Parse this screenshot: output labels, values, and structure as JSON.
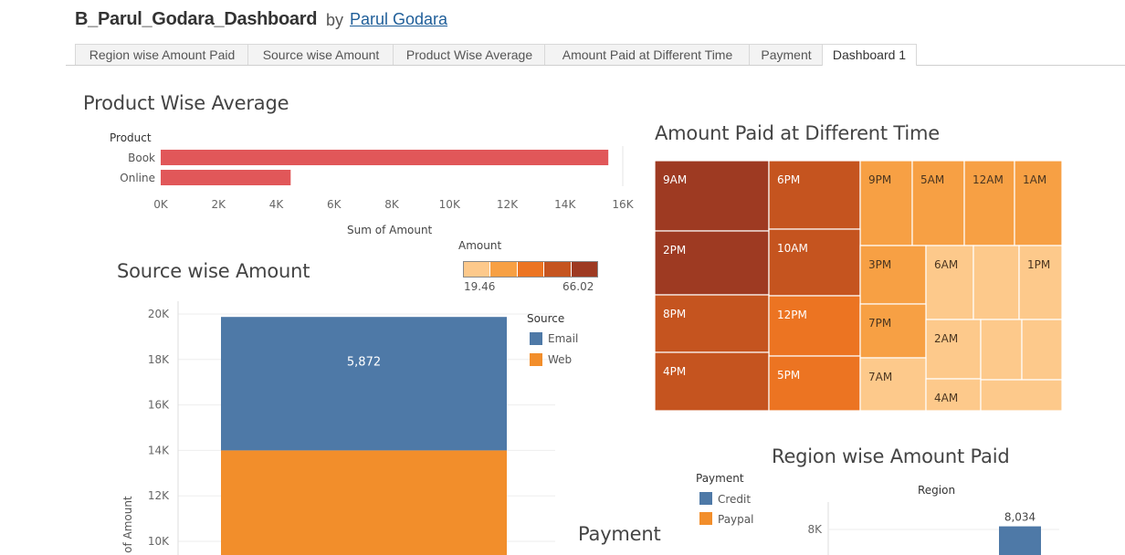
{
  "header": {
    "title": "B_Parul_Godara_Dashboard",
    "by": "by",
    "author": "Parul Godara"
  },
  "tabs": [
    {
      "label": "Region wise Amount Paid",
      "active": false
    },
    {
      "label": "Source wise Amount",
      "active": false
    },
    {
      "label": "Product Wise Average",
      "active": false
    },
    {
      "label": "Amount Paid at Different Time",
      "active": false
    },
    {
      "label": "Payment",
      "active": false
    },
    {
      "label": "Dashboard 1",
      "active": true
    }
  ],
  "sheets": {
    "product": "Product Wise Average",
    "source": "Source wise Amount",
    "time": "Amount Paid at Different Time",
    "region": "Region wise Amount Paid",
    "payment": "Payment"
  },
  "amount_legend": {
    "title": "Amount",
    "min": "19.46",
    "max": "66.02",
    "colors": [
      "#fdc98b",
      "#f7a044",
      "#ec7422",
      "#c5541f",
      "#9e3a22"
    ]
  },
  "source_legend": {
    "title": "Source",
    "items": [
      {
        "label": "Email",
        "color": "#4e79a7"
      },
      {
        "label": "Web",
        "color": "#f28e2b"
      }
    ]
  },
  "payment_legend": {
    "title": "Payment",
    "items": [
      {
        "label": "Credit",
        "color": "#4e79a7"
      },
      {
        "label": "Paypal",
        "color": "#f28e2b"
      }
    ]
  },
  "chart_data": [
    {
      "id": "product",
      "type": "bar",
      "orientation": "horizontal",
      "title": "Product Wise Average",
      "category_label": "Product",
      "categories": [
        "Book",
        "Online"
      ],
      "values": [
        15500,
        4500
      ],
      "xlabel": "Sum of Amount",
      "xlim": [
        0,
        16000
      ],
      "xticks": [
        "0K",
        "2K",
        "4K",
        "6K",
        "8K",
        "10K",
        "12K",
        "14K",
        "16K"
      ],
      "color": "#e15759"
    },
    {
      "id": "source",
      "type": "bar",
      "stacked": true,
      "title": "Source wise Amount",
      "ylabel": "Sum of Amount",
      "ylim": [
        0,
        20000
      ],
      "yticks": [
        "10K",
        "12K",
        "14K",
        "16K",
        "18K",
        "20K"
      ],
      "series": [
        {
          "name": "Web",
          "values": [
            14000
          ]
        },
        {
          "name": "Email",
          "values": [
            5872
          ]
        }
      ],
      "data_labels": [
        "5,872"
      ]
    },
    {
      "id": "time",
      "type": "heatmap",
      "subtype": "treemap",
      "title": "Amount Paid at Different Time",
      "labels": [
        "9AM",
        "6PM",
        "9PM",
        "5AM",
        "12AM",
        "1AM",
        "2PM",
        "10AM",
        "3PM",
        "6AM",
        "1PM",
        "8PM",
        "12PM",
        "7PM",
        "2AM",
        "4PM",
        "5PM",
        "7AM",
        "4AM"
      ],
      "color_min": 19.46,
      "color_max": 66.02
    },
    {
      "id": "region",
      "type": "bar",
      "title": "Region wise Amount Paid",
      "column_header": "Region",
      "yticks": [
        "8K"
      ],
      "values": [
        8034
      ],
      "data_labels": [
        "8,034"
      ],
      "color": "#4e79a7"
    }
  ]
}
